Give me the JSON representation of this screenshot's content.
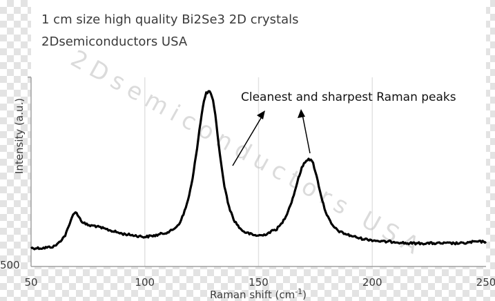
{
  "chart_data": {
    "type": "line",
    "title_lines": [
      "1 cm size high quality Bi2Se3 2D crystals",
      "2Dsemiconductors USA"
    ],
    "xlabel": "Raman shift (cm",
    "xlabel_superscript": "-1",
    "xlabel_close": ")",
    "ylabel": "Intensity (a.u.)",
    "xlim": [
      50,
      250
    ],
    "x_ticks": [
      50,
      100,
      150,
      200,
      250
    ],
    "x_tick_labels": [
      "50",
      "100",
      "150",
      "200",
      "250"
    ],
    "y_tick_label": "500",
    "grid": "vertical",
    "line_color": "#000000",
    "series": [
      {
        "x": [
          50,
          55,
          60,
          62,
          65,
          67,
          68,
          69,
          70,
          71,
          72,
          74,
          76,
          78,
          80,
          85,
          90,
          95,
          100,
          105,
          110,
          112,
          115,
          117,
          119,
          121,
          122,
          123,
          124,
          125,
          126,
          127,
          128,
          129,
          130,
          131,
          132,
          133,
          134,
          135,
          136,
          137,
          138,
          139,
          140,
          142,
          144,
          146,
          148,
          150,
          152,
          155,
          158,
          160,
          162,
          164,
          165,
          166,
          167,
          168,
          169,
          170,
          171,
          172,
          173,
          174,
          175,
          176,
          177,
          178,
          179,
          180,
          182,
          184,
          186,
          188,
          190,
          195,
          200,
          205,
          210,
          215,
          220,
          225,
          230,
          235,
          240,
          245,
          250
        ],
        "y": [
          0.02,
          0.02,
          0.03,
          0.05,
          0.1,
          0.17,
          0.22,
          0.24,
          0.24,
          0.22,
          0.19,
          0.17,
          0.16,
          0.16,
          0.15,
          0.13,
          0.11,
          0.1,
          0.09,
          0.1,
          0.12,
          0.13,
          0.17,
          0.23,
          0.32,
          0.45,
          0.55,
          0.65,
          0.76,
          0.86,
          0.94,
          0.99,
          1.0,
          0.99,
          0.94,
          0.85,
          0.73,
          0.61,
          0.5,
          0.41,
          0.34,
          0.28,
          0.24,
          0.2,
          0.18,
          0.14,
          0.12,
          0.11,
          0.1,
          0.1,
          0.1,
          0.12,
          0.14,
          0.17,
          0.22,
          0.29,
          0.33,
          0.38,
          0.43,
          0.48,
          0.52,
          0.55,
          0.57,
          0.58,
          0.57,
          0.55,
          0.5,
          0.44,
          0.38,
          0.32,
          0.27,
          0.23,
          0.17,
          0.14,
          0.12,
          0.11,
          0.1,
          0.08,
          0.07,
          0.06,
          0.06,
          0.05,
          0.05,
          0.05,
          0.05,
          0.05,
          0.05,
          0.06,
          0.06
        ]
      }
    ],
    "annotation": "Cleanest and sharpest Raman peaks",
    "watermark": "2Dsemiconductors USA"
  }
}
